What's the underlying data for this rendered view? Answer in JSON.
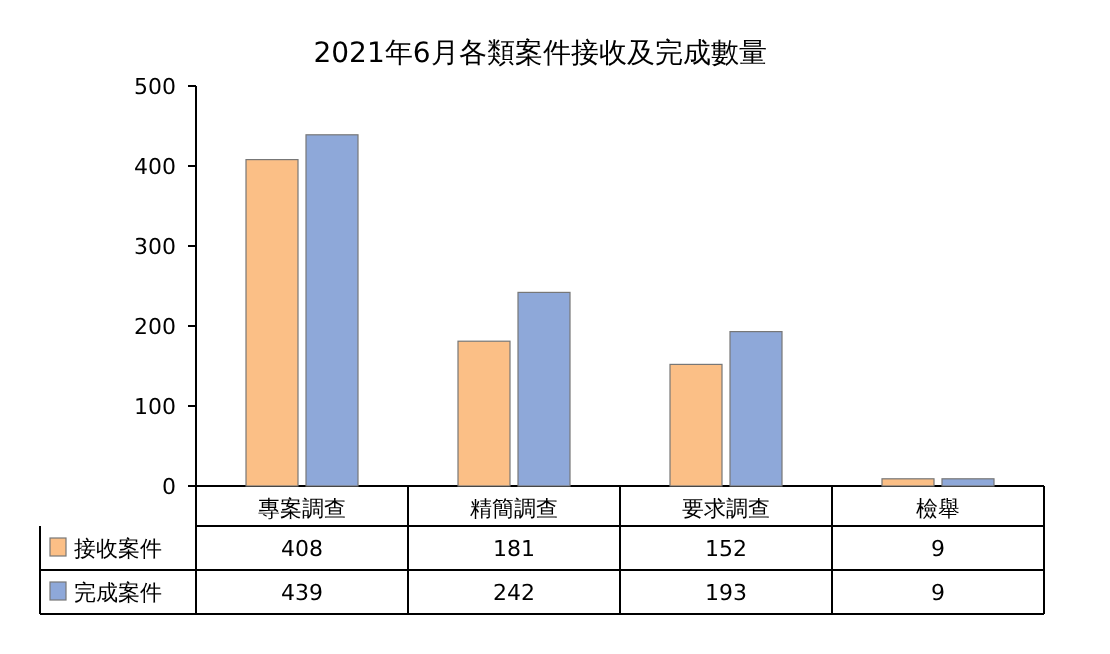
{
  "chart_data": {
    "type": "bar",
    "title": "2021年6月各類案件接收及完成數量",
    "categories": [
      "專案調查",
      "精簡調查",
      "要求調查",
      "檢舉"
    ],
    "series": [
      {
        "name": "接收案件",
        "color": "#fbbf86",
        "values": [
          408,
          181,
          152,
          9
        ]
      },
      {
        "name": "完成案件",
        "color": "#8ea8d9",
        "values": [
          439,
          242,
          193,
          9
        ]
      }
    ],
    "ylim": [
      0,
      500
    ],
    "yticks": [
      0,
      100,
      200,
      300,
      400,
      500
    ],
    "data_labels": true,
    "legend": "bottom"
  }
}
